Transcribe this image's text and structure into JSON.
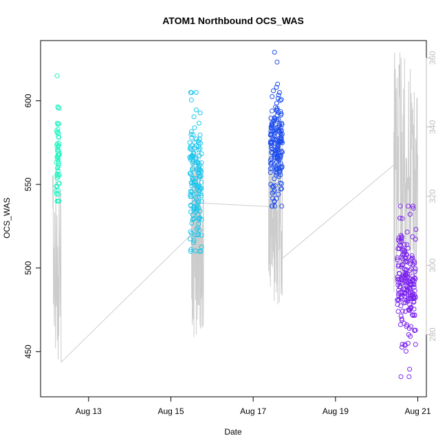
{
  "chart_data": {
    "type": "scatter",
    "title": "ATOM1 Northbound OCS_WAS",
    "xlabel": "Date",
    "ylabel": "OCS_WAS",
    "x_unit": "date",
    "xlim": [
      "2025-08-11T20:00",
      "2025-08-21T05:00"
    ],
    "x_ticks": [
      {
        "date": "2025-08-13",
        "label": "Aug 13"
      },
      {
        "date": "2025-08-15",
        "label": "Aug 15"
      },
      {
        "date": "2025-08-17",
        "label": "Aug 17"
      },
      {
        "date": "2025-08-19",
        "label": "Aug 19"
      },
      {
        "date": "2025-08-21",
        "label": "Aug 21"
      }
    ],
    "ylim": [
      423,
      636
    ],
    "y_ticks": [
      450,
      500,
      550,
      600
    ],
    "y2lim": [
      262,
      365
    ],
    "y2_ticks": [
      280,
      300,
      320,
      340,
      360
    ],
    "point_clusters": [
      {
        "start": "2025-08-12T05:00",
        "end": "2025-08-12T07:00",
        "n": 60,
        "center": 565,
        "spread": 13,
        "min": 540,
        "max": 615,
        "color": "#1ff5c0"
      },
      {
        "start": "2025-08-15T11:00",
        "end": "2025-08-15T18:00",
        "n": 150,
        "center": 553,
        "spread": 22,
        "min": 510,
        "max": 605,
        "color": "#16c6ee"
      },
      {
        "start": "2025-08-17T10:00",
        "end": "2025-08-17T17:00",
        "n": 170,
        "center": 575,
        "spread": 16,
        "min": 537,
        "max": 629,
        "color": "#1c4cee"
      },
      {
        "start": "2025-08-20T12:00",
        "end": "2025-08-20T23:00",
        "n": 200,
        "center": 491,
        "spread": 19,
        "min": 435,
        "max": 537,
        "color": "#7a22ee"
      }
    ],
    "line_series": {
      "color": "#cccccc",
      "axis": "right",
      "segments": [
        {
          "start": "2025-08-12T03:00",
          "end": "2025-08-12T08:00",
          "n": 30,
          "low": 271,
          "high": 330
        },
        {
          "start": "2025-08-12T08:00",
          "end": "2025-08-15T12:00",
          "points": [
            272,
            309
          ]
        },
        {
          "start": "2025-08-15T12:00",
          "end": "2025-08-15T19:00",
          "n": 60,
          "low": 275,
          "high": 337
        },
        {
          "start": "2025-08-15T19:00",
          "end": "2025-08-17T09:00",
          "points": [
            318,
            317
          ]
        },
        {
          "start": "2025-08-17T09:00",
          "end": "2025-08-17T17:00",
          "n": 70,
          "low": 288,
          "high": 345
        },
        {
          "start": "2025-08-17T17:00",
          "end": "2025-08-20T10:00",
          "points": [
            302,
            329
          ]
        },
        {
          "start": "2025-08-20T10:00",
          "end": "2025-08-21T00:00",
          "n": 90,
          "low": 290,
          "high": 362
        }
      ]
    }
  }
}
